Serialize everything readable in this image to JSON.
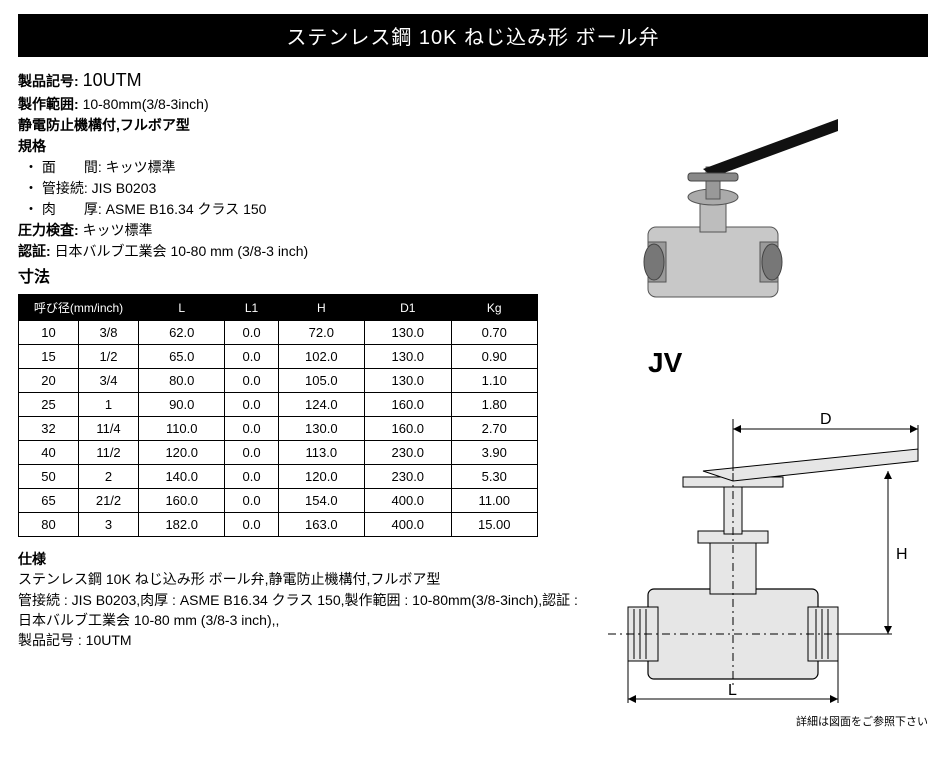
{
  "title": "ステンレス鋼 10K ねじ込み形 ボール弁",
  "product_code_label": "製品記号:",
  "product_code": "10UTM",
  "range_label": "製作範囲:",
  "range_value": "10-80mm(3/8-3inch)",
  "type_line": "静電防止機構付,フルボア型",
  "kikaku_label": "規格",
  "kikaku_items": [
    {
      "k": "・ 面　　間:",
      "v": "キッツ標準"
    },
    {
      "k": "・ 管接続:",
      "v": "JIS B0203"
    },
    {
      "k": "・ 肉　　厚:",
      "v": "ASME B16.34 クラス 150"
    }
  ],
  "pressure_label": "圧力検査:",
  "pressure_value": "キッツ標準",
  "cert_label": "認証:",
  "cert_value": "日本バルブ工業会 10-80 mm (3/8-3 inch)",
  "dim_label": "寸法",
  "table_headers": [
    "呼び径(mm/inch)",
    "L",
    "L1",
    "H",
    "D1",
    "Kg"
  ],
  "table_rows": [
    [
      "10",
      "3/8",
      "62.0",
      "0.0",
      "72.0",
      "130.0",
      "0.70"
    ],
    [
      "15",
      "1/2",
      "65.0",
      "0.0",
      "102.0",
      "130.0",
      "0.90"
    ],
    [
      "20",
      "3/4",
      "80.0",
      "0.0",
      "105.0",
      "130.0",
      "1.10"
    ],
    [
      "25",
      "1",
      "90.0",
      "0.0",
      "124.0",
      "160.0",
      "1.80"
    ],
    [
      "32",
      "11/4",
      "110.0",
      "0.0",
      "130.0",
      "160.0",
      "2.70"
    ],
    [
      "40",
      "11/2",
      "120.0",
      "0.0",
      "113.0",
      "230.0",
      "3.90"
    ],
    [
      "50",
      "2",
      "140.0",
      "0.0",
      "120.0",
      "230.0",
      "5.30"
    ],
    [
      "65",
      "21/2",
      "160.0",
      "0.0",
      "154.0",
      "400.0",
      "11.00"
    ],
    [
      "80",
      "3",
      "182.0",
      "0.0",
      "163.0",
      "400.0",
      "15.00"
    ]
  ],
  "shiyou_label": "仕様",
  "shiyou_body_1": "ステンレス鋼 10K ねじ込み形 ボール弁,静電防止機構付,フルボア型",
  "shiyou_body_2": "管接続 : JIS B0203,肉厚 : ASME B16.34 クラス 150,製作範囲 : 10-80mm(3/8-3inch),認証 : 日本バルブ工業会 10-80 mm (3/8-3 inch),,",
  "shiyou_body_3": "製品記号 : 10UTM",
  "jv_label": "JV",
  "dwg_letters": {
    "D": "D",
    "H": "H",
    "L": "L"
  },
  "dwg_note": "詳細は図面をご参照下さい"
}
